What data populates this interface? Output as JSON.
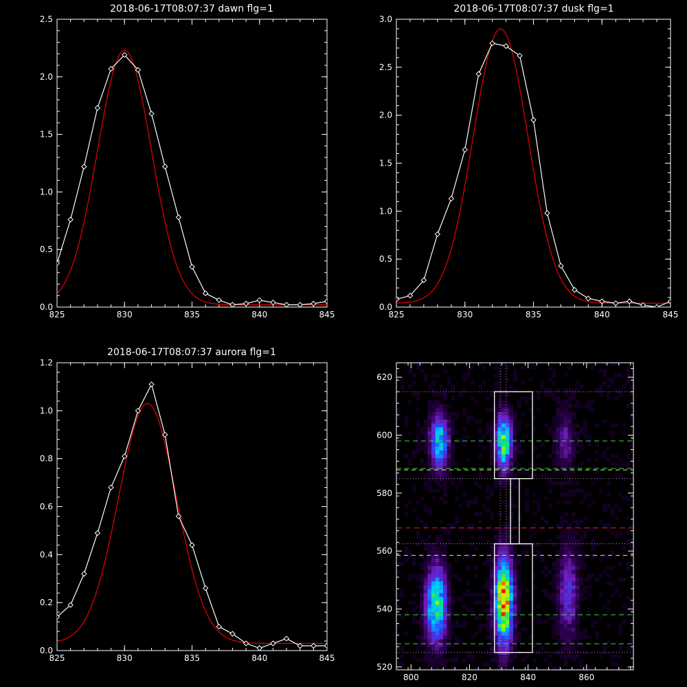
{
  "colors": {
    "background": "#000000",
    "axis": "#ffffff",
    "data_line": "#ffffff",
    "fit_line": "#dd0000",
    "green_dash": "#33dd33",
    "red_dash": "#dd2222",
    "yellow_dash": "#eeee88",
    "dotted": "#cc88cc"
  },
  "chart_data": [
    {
      "type": "line",
      "title": "2018-06-17T08:07:37 dawn flg=1",
      "xlim": [
        825,
        845
      ],
      "ylim": [
        0,
        2.5
      ],
      "xticks": [
        "825",
        "830",
        "835",
        "840",
        "845"
      ],
      "yticks": [
        "0.0",
        "0.5",
        "1.0",
        "1.5",
        "2.0",
        "2.5"
      ],
      "series": [
        {
          "style": "line-with-diamond-markers",
          "x": [
            825,
            826,
            827,
            828,
            829,
            830,
            831,
            832,
            833,
            834,
            835,
            836,
            837,
            838,
            839,
            840,
            841,
            842,
            843,
            844,
            845
          ],
          "y": [
            0.38,
            0.76,
            1.22,
            1.73,
            2.07,
            2.19,
            2.06,
            1.68,
            1.22,
            0.78,
            0.35,
            0.12,
            0.06,
            0.02,
            0.03,
            0.06,
            0.04,
            0.02,
            0.02,
            0.03,
            0.05
          ]
        },
        {
          "style": "gaussian-fit",
          "amplitude": 2.21,
          "center": 830.0,
          "sigma": 2.0,
          "offset": 0.02
        }
      ]
    },
    {
      "type": "line",
      "title": "2018-06-17T08:07:37 dusk flg=1",
      "xlim": [
        825,
        845
      ],
      "ylim": [
        0,
        3.0
      ],
      "xticks": [
        "825",
        "830",
        "835",
        "840",
        "845"
      ],
      "yticks": [
        "0.0",
        "0.5",
        "1.0",
        "1.5",
        "2.0",
        "2.5",
        "3.0"
      ],
      "series": [
        {
          "style": "line-with-diamond-markers",
          "x": [
            825,
            826,
            827,
            828,
            829,
            830,
            831,
            832,
            833,
            834,
            835,
            836,
            837,
            838,
            839,
            840,
            841,
            842,
            843,
            844,
            845
          ],
          "y": [
            0.08,
            0.12,
            0.28,
            0.76,
            1.13,
            1.64,
            2.43,
            2.75,
            2.72,
            2.62,
            1.95,
            0.98,
            0.43,
            0.18,
            0.09,
            0.06,
            0.04,
            0.06,
            0.02,
            0.0,
            0.06
          ]
        },
        {
          "style": "gaussian-fit",
          "amplitude": 2.86,
          "center": 832.6,
          "sigma": 2.0,
          "offset": 0.04
        }
      ]
    },
    {
      "type": "line",
      "title": "2018-06-17T08:07:37 aurora flg=1",
      "xlim": [
        825,
        845
      ],
      "ylim": [
        0,
        1.2
      ],
      "xticks": [
        "825",
        "830",
        "835",
        "840",
        "845"
      ],
      "yticks": [
        "0.0",
        "0.2",
        "0.4",
        "0.6",
        "0.8",
        "1.0",
        "1.2"
      ],
      "series": [
        {
          "style": "line-with-diamond-markers",
          "x": [
            825,
            826,
            827,
            828,
            829,
            830,
            831,
            832,
            833,
            834,
            835,
            836,
            837,
            838,
            839,
            840,
            841,
            842,
            843,
            844,
            845
          ],
          "y": [
            0.14,
            0.19,
            0.32,
            0.49,
            0.68,
            0.81,
            1.0,
            1.11,
            0.9,
            0.56,
            0.44,
            0.26,
            0.1,
            0.07,
            0.03,
            0.01,
            0.03,
            0.05,
            0.02,
            0.02,
            0.02
          ]
        },
        {
          "style": "gaussian-fit",
          "amplitude": 1.0,
          "center": 831.7,
          "sigma": 2.15,
          "offset": 0.03
        }
      ]
    },
    {
      "type": "heatmap",
      "title": "",
      "xlim": [
        795,
        876
      ],
      "ylim": [
        519,
        625
      ],
      "xticks": [
        "800",
        "820",
        "840",
        "860"
      ],
      "yticks": [
        "520",
        "540",
        "560",
        "580",
        "600",
        "620"
      ],
      "colormap": "black-purple-blue-cyan-green-yellow-red",
      "blobs": [
        {
          "x": 809,
          "y": 597,
          "sx": 2.0,
          "sy": 6.0,
          "amp": 0.55
        },
        {
          "x": 831,
          "y": 597,
          "sx": 1.8,
          "sy": 6.0,
          "amp": 0.68
        },
        {
          "x": 808,
          "y": 541,
          "sx": 2.3,
          "sy": 8.5,
          "amp": 0.62
        },
        {
          "x": 831,
          "y": 542,
          "sx": 2.0,
          "sy": 9.5,
          "amp": 0.98
        },
        {
          "x": 853,
          "y": 545,
          "sx": 2.2,
          "sy": 10.0,
          "amp": 0.25
        },
        {
          "x": 852,
          "y": 598,
          "sx": 2.2,
          "sy": 7.0,
          "amp": 0.15
        }
      ],
      "boxes": [
        {
          "x0": 828.5,
          "x1": 841.5,
          "y0": 585,
          "y1": 615
        },
        {
          "x0": 834,
          "x1": 837,
          "y0": 562.5,
          "y1": 585
        },
        {
          "x0": 828.5,
          "x1": 841.5,
          "y0": 525,
          "y1": 562.5
        }
      ],
      "hlines": [
        {
          "y": 598,
          "style": "green-dash"
        },
        {
          "y": 588.5,
          "style": "green-dash"
        },
        {
          "y": 538,
          "style": "green-dash"
        },
        {
          "y": 528,
          "style": "green-dash"
        },
        {
          "y": 568,
          "style": "red-dash"
        },
        {
          "y": 588,
          "style": "yellow-dash"
        },
        {
          "y": 558.5,
          "style": "yellow-dash"
        },
        {
          "y": 615,
          "style": "dotted"
        },
        {
          "y": 585,
          "style": "dotted"
        },
        {
          "y": 562.5,
          "style": "dotted"
        },
        {
          "y": 525,
          "style": "dotted"
        }
      ],
      "vlines": [
        {
          "x": 830.5,
          "style": "dotted"
        },
        {
          "x": 832.5,
          "style": "dotted"
        }
      ]
    }
  ]
}
